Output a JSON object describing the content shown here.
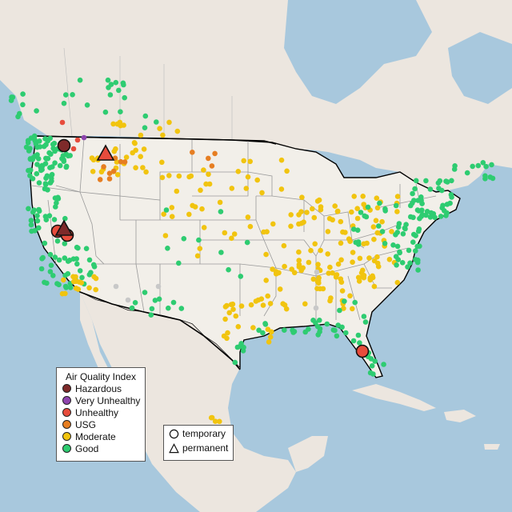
{
  "legend": {
    "title": "Air Quality Index",
    "categories": [
      {
        "label": "Hazardous",
        "color": "#7e2a2a"
      },
      {
        "label": "Very Unhealthy",
        "color": "#8e44ad"
      },
      {
        "label": "Unhealthy",
        "color": "#e74c3c"
      },
      {
        "label": "USG",
        "color": "#e67e22"
      },
      {
        "label": "Moderate",
        "color": "#f1c40f"
      },
      {
        "label": "Good",
        "color": "#2ecc71"
      }
    ]
  },
  "monitor_types": [
    {
      "label": "temporary",
      "shape": "circle"
    },
    {
      "label": "permanent",
      "shape": "triangle"
    }
  ],
  "colors": {
    "water": "#a8c8dd",
    "land_us": "#f2efe9",
    "land_other": "#ece6df",
    "state_lines": "#9a9a9a",
    "borders": "#000000",
    "no_data": "#c8c8c8"
  }
}
